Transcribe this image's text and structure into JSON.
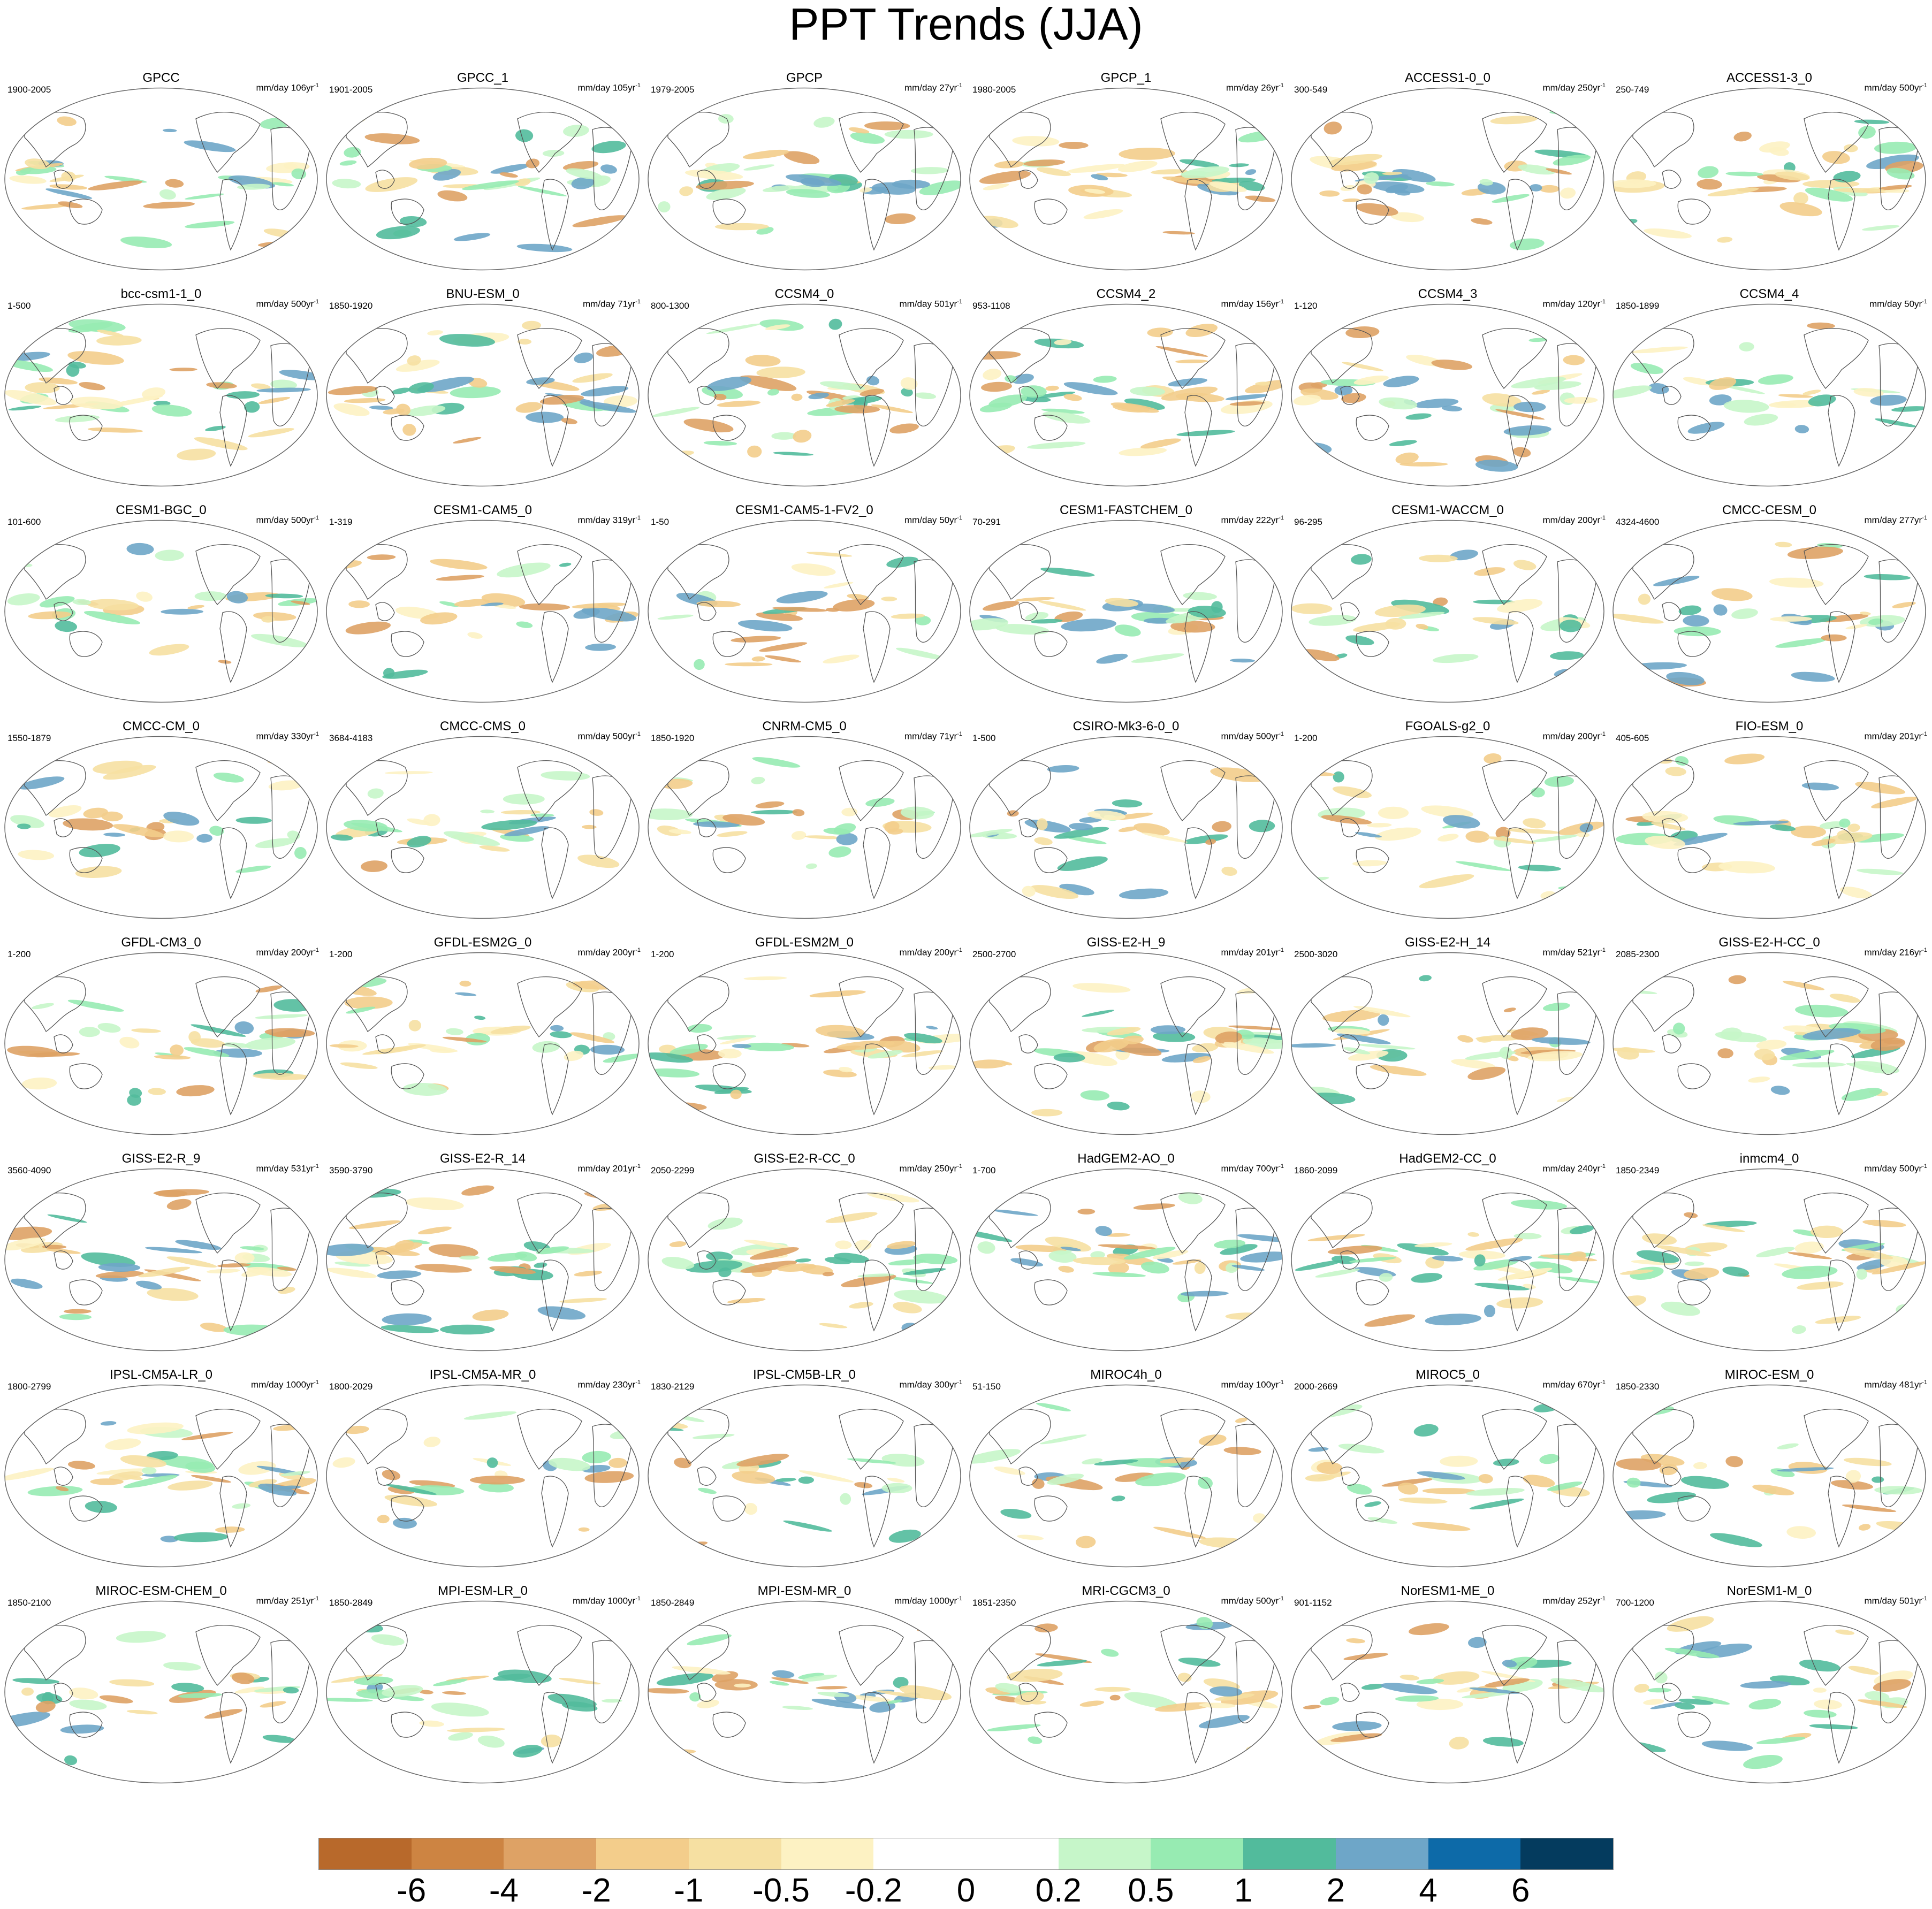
{
  "title": "PPT Trends (JJA)",
  "panels": [
    {
      "title": "GPCC",
      "years": "1900-2005",
      "units": "mm/day 106yr",
      "units_sup": "-1"
    },
    {
      "title": "GPCC_1",
      "years": "1901-2005",
      "units": "mm/day 105yr",
      "units_sup": "-1"
    },
    {
      "title": "GPCP",
      "years": "1979-2005",
      "units": "mm/day 27yr",
      "units_sup": "-1"
    },
    {
      "title": "GPCP_1",
      "years": "1980-2005",
      "units": "mm/day 26yr",
      "units_sup": "-1"
    },
    {
      "title": "ACCESS1-0_0",
      "years": "300-549",
      "units": "mm/day 250yr",
      "units_sup": "-1"
    },
    {
      "title": "ACCESS1-3_0",
      "years": "250-749",
      "units": "mm/day 500yr",
      "units_sup": "-1"
    },
    {
      "title": "bcc-csm1-1_0",
      "years": "1-500",
      "units": "mm/day 500yr",
      "units_sup": "-1"
    },
    {
      "title": "BNU-ESM_0",
      "years": "1850-1920",
      "units": "mm/day 71yr",
      "units_sup": "-1"
    },
    {
      "title": "CCSM4_0",
      "years": "800-1300",
      "units": "mm/day 501yr",
      "units_sup": "-1"
    },
    {
      "title": "CCSM4_2",
      "years": "953-1108",
      "units": "mm/day 156yr",
      "units_sup": "-1"
    },
    {
      "title": "CCSM4_3",
      "years": "1-120",
      "units": "mm/day 120yr",
      "units_sup": "-1"
    },
    {
      "title": "CCSM4_4",
      "years": "1850-1899",
      "units": "mm/day 50yr",
      "units_sup": "-1"
    },
    {
      "title": "CESM1-BGC_0",
      "years": "101-600",
      "units": "mm/day 500yr",
      "units_sup": "-1"
    },
    {
      "title": "CESM1-CAM5_0",
      "years": "1-319",
      "units": "mm/day 319yr",
      "units_sup": "-1"
    },
    {
      "title": "CESM1-CAM5-1-FV2_0",
      "years": "1-50",
      "units": "mm/day 50yr",
      "units_sup": "-1"
    },
    {
      "title": "CESM1-FASTCHEM_0",
      "years": "70-291",
      "units": "mm/day 222yr",
      "units_sup": "-1"
    },
    {
      "title": "CESM1-WACCM_0",
      "years": "96-295",
      "units": "mm/day 200yr",
      "units_sup": "-1"
    },
    {
      "title": "CMCC-CESM_0",
      "years": "4324-4600",
      "units": "mm/day 277yr",
      "units_sup": "-1"
    },
    {
      "title": "CMCC-CM_0",
      "years": "1550-1879",
      "units": "mm/day 330yr",
      "units_sup": "-1"
    },
    {
      "title": "CMCC-CMS_0",
      "years": "3684-4183",
      "units": "mm/day 500yr",
      "units_sup": "-1"
    },
    {
      "title": "CNRM-CM5_0",
      "years": "1850-1920",
      "units": "mm/day 71yr",
      "units_sup": "-1"
    },
    {
      "title": "CSIRO-Mk3-6-0_0",
      "years": "1-500",
      "units": "mm/day 500yr",
      "units_sup": "-1"
    },
    {
      "title": "FGOALS-g2_0",
      "years": "1-200",
      "units": "mm/day 200yr",
      "units_sup": "-1"
    },
    {
      "title": "FIO-ESM_0",
      "years": "405-605",
      "units": "mm/day 201yr",
      "units_sup": "-1"
    },
    {
      "title": "GFDL-CM3_0",
      "years": "1-200",
      "units": "mm/day 200yr",
      "units_sup": "-1"
    },
    {
      "title": "GFDL-ESM2G_0",
      "years": "1-200",
      "units": "mm/day 200yr",
      "units_sup": "-1"
    },
    {
      "title": "GFDL-ESM2M_0",
      "years": "1-200",
      "units": "mm/day 200yr",
      "units_sup": "-1"
    },
    {
      "title": "GISS-E2-H_9",
      "years": "2500-2700",
      "units": "mm/day 201yr",
      "units_sup": "-1"
    },
    {
      "title": "GISS-E2-H_14",
      "years": "2500-3020",
      "units": "mm/day 521yr",
      "units_sup": "-1"
    },
    {
      "title": "GISS-E2-H-CC_0",
      "years": "2085-2300",
      "units": "mm/day 216yr",
      "units_sup": "-1"
    },
    {
      "title": "GISS-E2-R_9",
      "years": "3560-4090",
      "units": "mm/day 531yr",
      "units_sup": "-1"
    },
    {
      "title": "GISS-E2-R_14",
      "years": "3590-3790",
      "units": "mm/day 201yr",
      "units_sup": "-1"
    },
    {
      "title": "GISS-E2-R-CC_0",
      "years": "2050-2299",
      "units": "mm/day 250yr",
      "units_sup": "-1"
    },
    {
      "title": "HadGEM2-AO_0",
      "years": "1-700",
      "units": "mm/day 700yr",
      "units_sup": "-1"
    },
    {
      "title": "HadGEM2-CC_0",
      "years": "1860-2099",
      "units": "mm/day 240yr",
      "units_sup": "-1"
    },
    {
      "title": "inmcm4_0",
      "years": "1850-2349",
      "units": "mm/day 500yr",
      "units_sup": "-1"
    },
    {
      "title": "IPSL-CM5A-LR_0",
      "years": "1800-2799",
      "units": "mm/day 1000yr",
      "units_sup": "-1"
    },
    {
      "title": "IPSL-CM5A-MR_0",
      "years": "1800-2029",
      "units": "mm/day 230yr",
      "units_sup": "-1"
    },
    {
      "title": "IPSL-CM5B-LR_0",
      "years": "1830-2129",
      "units": "mm/day 300yr",
      "units_sup": "-1"
    },
    {
      "title": "MIROC4h_0",
      "years": "51-150",
      "units": "mm/day 100yr",
      "units_sup": "-1"
    },
    {
      "title": "MIROC5_0",
      "years": "2000-2669",
      "units": "mm/day 670yr",
      "units_sup": "-1"
    },
    {
      "title": "MIROC-ESM_0",
      "years": "1850-2330",
      "units": "mm/day 481yr",
      "units_sup": "-1"
    },
    {
      "title": "MIROC-ESM-CHEM_0",
      "years": "1850-2100",
      "units": "mm/day 251yr",
      "units_sup": "-1"
    },
    {
      "title": "MPI-ESM-LR_0",
      "years": "1850-2849",
      "units": "mm/day 1000yr",
      "units_sup": "-1"
    },
    {
      "title": "MPI-ESM-MR_0",
      "years": "1850-2849",
      "units": "mm/day 1000yr",
      "units_sup": "-1"
    },
    {
      "title": "MRI-CGCM3_0",
      "years": "1851-2350",
      "units": "mm/day 500yr",
      "units_sup": "-1"
    },
    {
      "title": "NorESM1-ME_0",
      "years": "901-1152",
      "units": "mm/day 252yr",
      "units_sup": "-1"
    },
    {
      "title": "NorESM1-M_0",
      "years": "700-1200",
      "units": "mm/day 501yr",
      "units_sup": "-1"
    }
  ],
  "colorbar": {
    "colors": [
      "#b8692b",
      "#cd8442",
      "#dea265",
      "#f3cd8b",
      "#f6e0a2",
      "#fdf2c3",
      "#ffffff",
      "#ffffff",
      "#c6f6c9",
      "#97ebb2",
      "#52bb9c",
      "#6ea6c8",
      "#0d6aa8",
      "#043b5e"
    ],
    "labels": [
      "-6",
      "-4",
      "-2",
      "-1",
      "-0.5",
      "-0.2",
      "0",
      "0.2",
      "0.5",
      "1",
      "2",
      "4",
      "6"
    ]
  }
}
